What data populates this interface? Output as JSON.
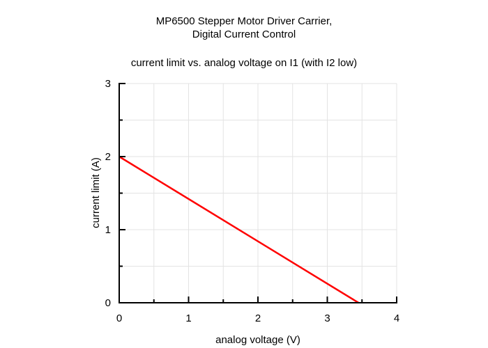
{
  "chart_data": {
    "type": "line",
    "title": [
      "MP6500 Stepper Motor Driver Carrier,",
      "Digital Current Control"
    ],
    "subtitle": "current limit vs. analog voltage on I1 (with I2 low)",
    "xlabel": "analog voltage (V)",
    "ylabel": "current limit (A)",
    "xlim": [
      0,
      4
    ],
    "ylim": [
      0,
      3
    ],
    "xticks": [
      "0",
      "1",
      "2",
      "3",
      "4"
    ],
    "yticks": [
      "0",
      "1",
      "2",
      "3"
    ],
    "grid": true,
    "grid_step": 0.5,
    "series": [
      {
        "name": "current limit",
        "color": "#ff0000",
        "x": [
          0,
          3.45
        ],
        "y": [
          2,
          0
        ]
      }
    ]
  }
}
